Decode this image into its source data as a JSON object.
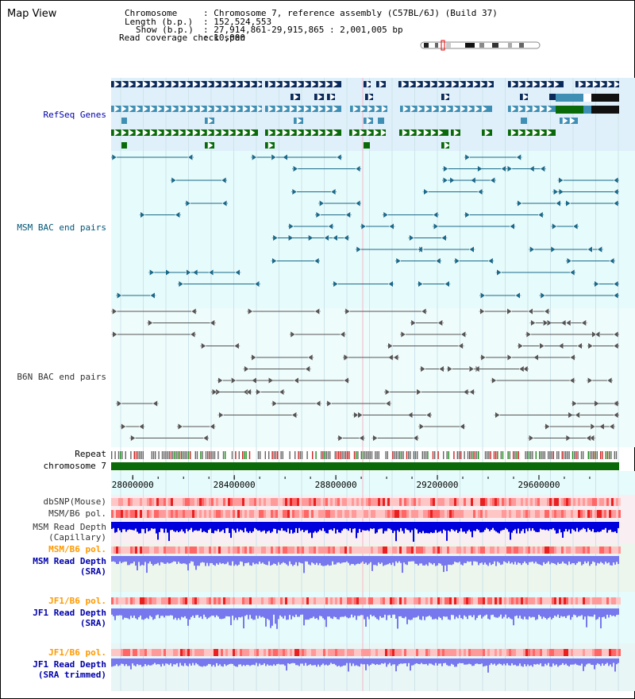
{
  "title": "Map View",
  "header": {
    "chromosome_key": "Chromosome",
    "chromosome_value": ": Chromosome 7, reference assembly (C57BL/6J) (Build 37)",
    "length_key": "Length (b.p.)",
    "length_value": ": 152,524,553",
    "show_key": "Show (b.p.)",
    "show_value": ": 27,914,861-29,915,865 : 2,001,005 bp",
    "span_key": "Read coverage check span",
    "span_value": ": 10,000"
  },
  "tracks": {
    "refseq": "RefSeq Genes",
    "msm_bac": "MSM BAC end pairs",
    "b6n_bac": "B6N BAC end pairs",
    "repeat": "Repeat",
    "chromosome": "chromosome 7",
    "dbsnp": "dbSNP(Mouse)",
    "msm_b6_pol_1": "MSM/B6 pol.",
    "msm_depth_cap_1": "MSM Read Depth",
    "msm_depth_cap_2": "(Capillary)",
    "msm_b6_pol_2": "MSM/B6 pol.",
    "msm_depth_sra_1": "MSM Read Depth",
    "msm_depth_sra_2": "(SRA)",
    "jf1_pol_1": "JF1/B6 pol.",
    "jf1_depth_1": "JF1 Read Depth",
    "jf1_depth_1b": "(SRA)",
    "jf1_pol_2": "JF1/B6 pol.",
    "jf1_depth_2": "JF1 Read Depth",
    "jf1_depth_2b": "(SRA trimmed)"
  },
  "axis": {
    "ticks": [
      "28000000",
      "28400000",
      "28800000",
      "29200000",
      "29600000"
    ],
    "tick_values": [
      28000000,
      28400000,
      28800000,
      29200000,
      29600000
    ],
    "range": [
      27914861,
      29915865
    ]
  },
  "colors": {
    "label_blue": "#0000aa",
    "label_teal": "#005577",
    "label_orange": "#ff9900",
    "gene_navy": "#0a2a5a",
    "gene_steel": "#3f8fb4",
    "gene_green": "#0a6a0a",
    "msm_line": "#1a6a8a",
    "b6n_line": "#555555",
    "depth_dark": "#0000dd",
    "depth_light": "#7777ee"
  }
}
